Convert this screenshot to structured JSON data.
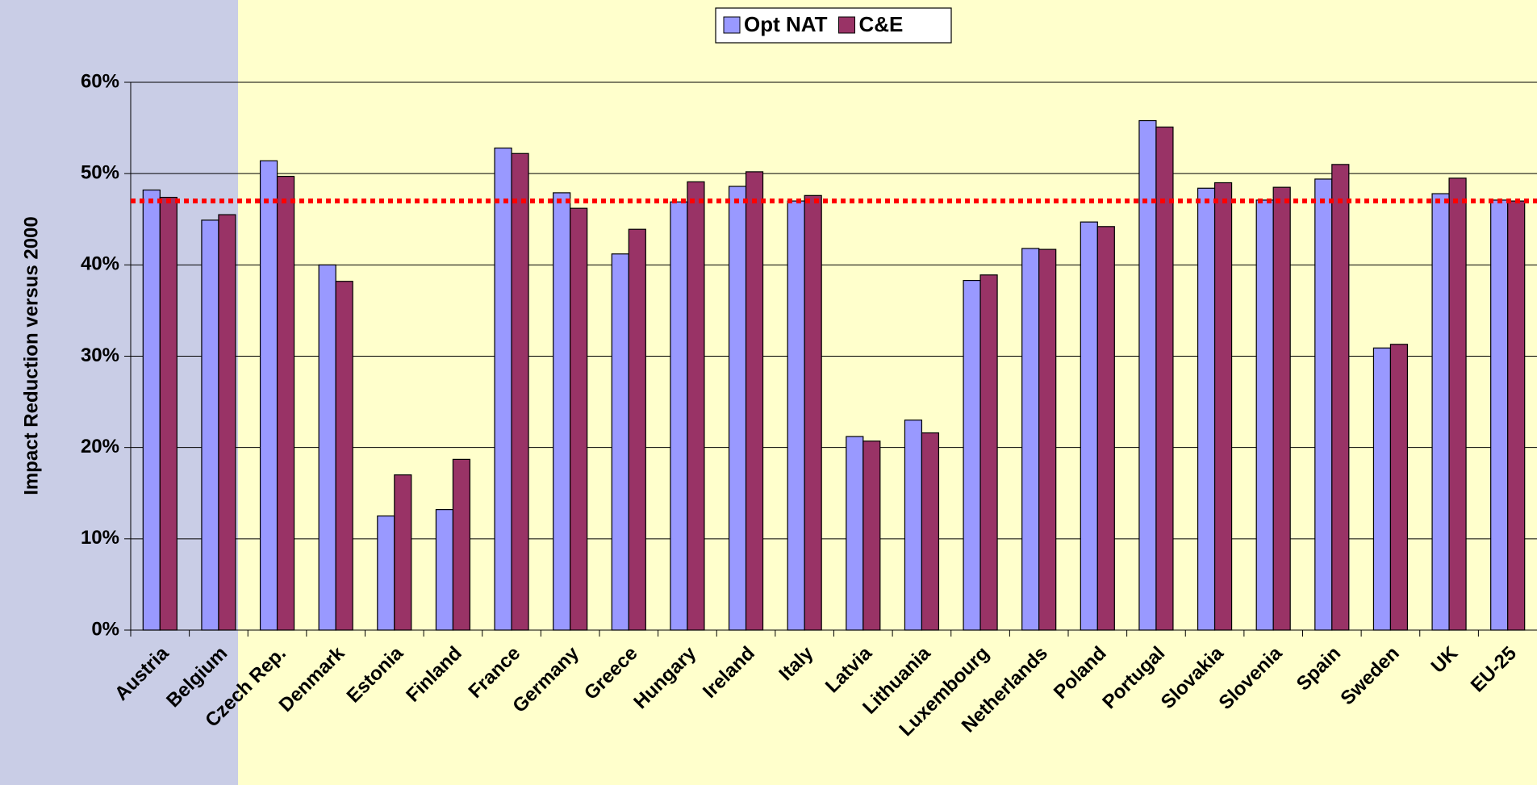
{
  "chart_data": {
    "type": "bar",
    "y_axis_label": "Impact Reduction versus 2000",
    "categories": [
      "Austria",
      "Belgium",
      "Czech Rep.",
      "Denmark",
      "Estonia",
      "Finland",
      "France",
      "Germany",
      "Greece",
      "Hungary",
      "Ireland",
      "Italy",
      "Latvia",
      "Lithuania",
      "Luxembourg",
      "Netherlands",
      "Poland",
      "Portugal",
      "Slovakia",
      "Slovenia",
      "Spain",
      "Sweden",
      "UK",
      "EU-25"
    ],
    "series": [
      {
        "name": "Opt NAT",
        "color": "#9999ff",
        "values": [
          48.2,
          44.9,
          51.4,
          40.0,
          12.5,
          13.2,
          52.8,
          47.9,
          41.2,
          46.9,
          48.6,
          47.0,
          21.2,
          23.0,
          38.3,
          41.8,
          44.7,
          55.8,
          48.4,
          47.1,
          49.4,
          30.9,
          47.8,
          47.1
        ]
      },
      {
        "name": "C&E",
        "color": "#993366",
        "values": [
          47.4,
          45.5,
          49.7,
          38.2,
          17.0,
          18.7,
          52.2,
          46.2,
          43.9,
          49.1,
          50.2,
          47.6,
          20.7,
          21.6,
          38.9,
          41.7,
          44.2,
          55.1,
          49.0,
          48.5,
          51.0,
          31.3,
          49.5,
          47.0
        ]
      }
    ],
    "reference_line": 47,
    "reference_color": "#ff0000",
    "ylim": [
      0,
      60
    ],
    "yticks": [
      {
        "value": 0,
        "label": "0%"
      },
      {
        "value": 10,
        "label": "10%"
      },
      {
        "value": 20,
        "label": "20%"
      },
      {
        "value": 30,
        "label": "30%"
      },
      {
        "value": 40,
        "label": "40%"
      },
      {
        "value": 50,
        "label": "50%"
      },
      {
        "value": 60,
        "label": "60%"
      }
    ],
    "grid": true,
    "legend": "top"
  }
}
